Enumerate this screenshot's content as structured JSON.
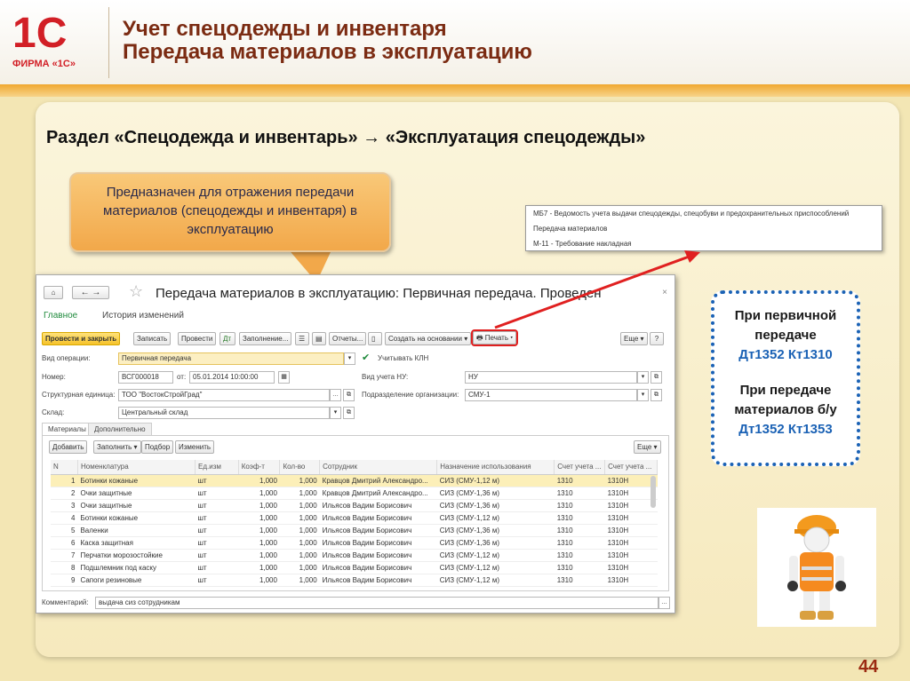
{
  "header": {
    "logo_text": "1С",
    "logo_caption": "ФИРМА «1С»",
    "title_line1": "Учет спецодежды и инвентаря",
    "title_line2": "Передача материалов в эксплуатацию"
  },
  "section_heading": "Раздел «Спецодежда и инвентарь» → «Эксплуатация спецодежды»",
  "callout": "Предназначен для отражения передачи материалов (спецодежды и инвентаря) в эксплуатацию",
  "print_menu": {
    "items": [
      "МБ7 - Ведомость учета выдачи спецодежды, спецобуви и предохранительных приспособлений",
      "Передача материалов",
      "М-11 - Требование накладная"
    ]
  },
  "window": {
    "title": "Передача материалов в эксплуатацию: Первичная передача. Проведен",
    "nav": {
      "main": "Главное",
      "history": "История изменений"
    },
    "toolbar": {
      "post_close": "Провести и закрыть",
      "save": "Записать",
      "post": "Провести",
      "fill": "Заполнение...",
      "reports": "Отчеты...",
      "create_based": "Создать на основании",
      "print": "Печать",
      "more": "Еще",
      "help": "?"
    },
    "fields": {
      "op_label": "Вид операции:",
      "op_value": "Первичная передача",
      "kln_label": "Учитывать КЛН",
      "num_label": "Номер:",
      "num_value": "ВСГ000018",
      "date_label": "от:",
      "date_value": "05.01.2014 10:00:00",
      "nu_label": "Вид учета НУ:",
      "nu_value": "НУ",
      "unit_label": "Структурная единица:",
      "unit_value": "ТОО \"ВостокСтройГрад\"",
      "dept_label": "Подразделение организации:",
      "dept_value": "СМУ-1",
      "wh_label": "Склад:",
      "wh_value": "Центральный склад"
    },
    "tabs": [
      "Материалы",
      "Дополнительно"
    ],
    "table_toolbar": {
      "add": "Добавить",
      "fill": "Заполнить",
      "pick": "Подбор",
      "edit": "Изменить",
      "more": "Еще"
    },
    "columns": [
      "N",
      "Номенклатура",
      "Ед.изм",
      "Коэф-т",
      "Кол-во",
      "Сотрудник",
      "Назначение использования",
      "Счет учета ...",
      "Счет учета ..."
    ],
    "rows": [
      [
        "1",
        "Ботинки кожаные",
        "шт",
        "1,000",
        "1,000",
        "Кравцов Дмитрий Александро...",
        "СИЗ (СМУ-1,12 м)",
        "1310",
        "1310Н"
      ],
      [
        "2",
        "Очки защитные",
        "шт",
        "1,000",
        "1,000",
        "Кравцов Дмитрий Александро...",
        "СИЗ (СМУ-1,36 м)",
        "1310",
        "1310Н"
      ],
      [
        "3",
        "Очки защитные",
        "шт",
        "1,000",
        "1,000",
        "Ильясов Вадим Борисович",
        "СИЗ (СМУ-1,36 м)",
        "1310",
        "1310Н"
      ],
      [
        "4",
        "Ботинки кожаные",
        "шт",
        "1,000",
        "1,000",
        "Ильясов Вадим Борисович",
        "СИЗ (СМУ-1,12 м)",
        "1310",
        "1310Н"
      ],
      [
        "5",
        "Валенки",
        "шт",
        "1,000",
        "1,000",
        "Ильясов Вадим Борисович",
        "СИЗ (СМУ-1,36 м)",
        "1310",
        "1310Н"
      ],
      [
        "6",
        "Каска защитная",
        "шт",
        "1,000",
        "1,000",
        "Ильясов Вадим Борисович",
        "СИЗ (СМУ-1,36 м)",
        "1310",
        "1310Н"
      ],
      [
        "7",
        "Перчатки морозостойкие",
        "шт",
        "1,000",
        "1,000",
        "Ильясов Вадим Борисович",
        "СИЗ (СМУ-1,12 м)",
        "1310",
        "1310Н"
      ],
      [
        "8",
        "Подшлемник под каску",
        "шт",
        "1,000",
        "1,000",
        "Ильясов Вадим Борисович",
        "СИЗ (СМУ-1,12 м)",
        "1310",
        "1310Н"
      ],
      [
        "9",
        "Сапоги резиновые",
        "шт",
        "1,000",
        "1,000",
        "Ильясов Вадим Борисович",
        "СИЗ (СМУ-1,12 м)",
        "1310",
        "1310Н"
      ]
    ],
    "comment_label": "Комментарий:",
    "comment_value": "выдача сиз сотрудникам"
  },
  "info_box": {
    "l1": "При первичной передаче",
    "e1": "Дт1352 Кт1310",
    "l2": "При передаче материалов б/у",
    "e2": "Дт1352 Кт1353"
  },
  "page_number": "44",
  "colors": {
    "accent": "#f0a830",
    "title": "#7b2b12",
    "highlight_red": "#e02020",
    "info_blue": "#1b62b5"
  }
}
